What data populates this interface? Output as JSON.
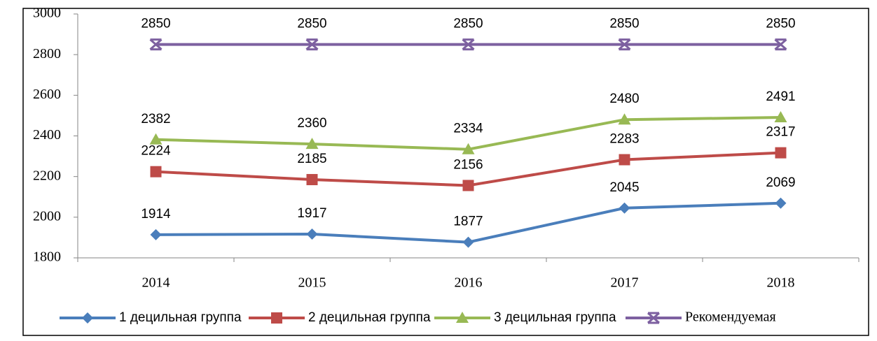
{
  "chart_data": {
    "type": "line",
    "categories": [
      "2014",
      "2015",
      "2016",
      "2017",
      "2018"
    ],
    "series": [
      {
        "name": "1 децильная группа",
        "color": "#4a7ebb",
        "marker": "diamond",
        "values": [
          1914,
          1917,
          1877,
          2045,
          2069
        ]
      },
      {
        "name": "2 децильная группа",
        "color": "#be4b48",
        "marker": "square",
        "values": [
          2224,
          2185,
          2156,
          2283,
          2317
        ]
      },
      {
        "name": "3 децильная группа",
        "color": "#98b954",
        "marker": "triangle",
        "values": [
          2382,
          2360,
          2334,
          2480,
          2491
        ]
      },
      {
        "name": "Рекомендуемая",
        "color": "#7d60a0",
        "marker": "star",
        "values": [
          2850,
          2850,
          2850,
          2850,
          2850
        ]
      }
    ],
    "ylim": [
      1800,
      3000
    ],
    "yticks": [
      1800,
      2000,
      2200,
      2400,
      2600,
      2800,
      3000
    ],
    "grid": false,
    "legend": "bottom"
  }
}
